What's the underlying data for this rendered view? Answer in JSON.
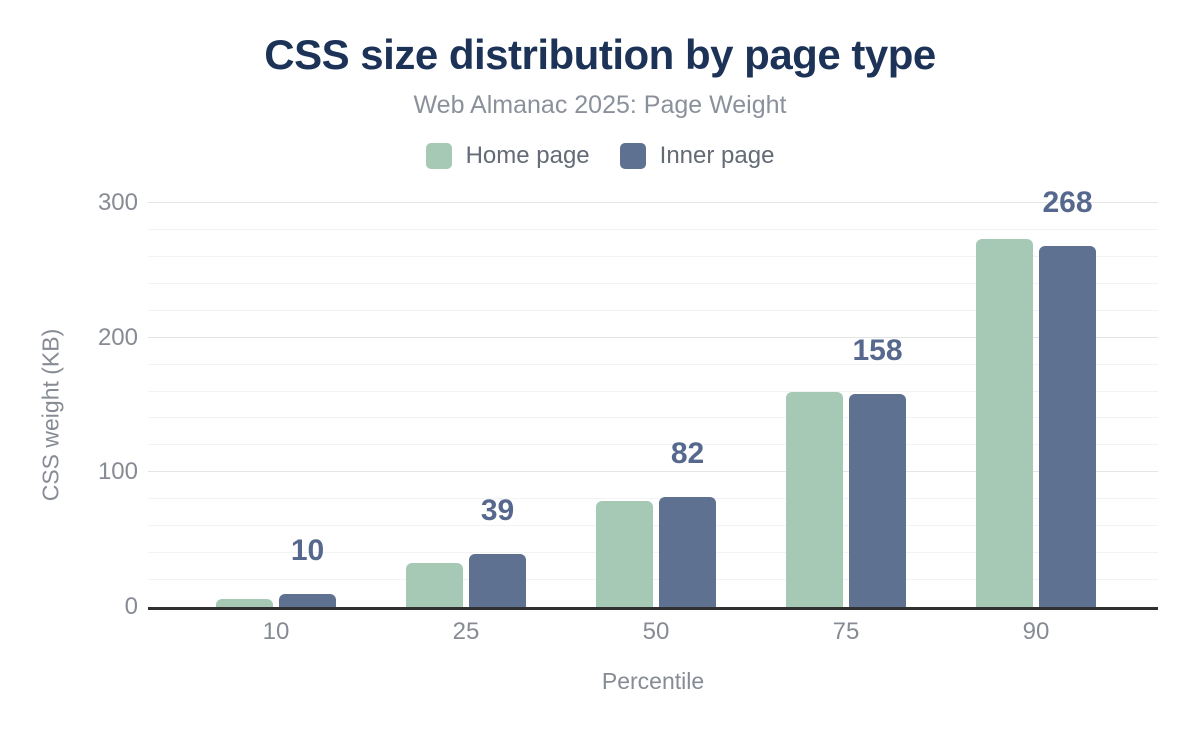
{
  "chart_data": {
    "type": "bar",
    "title": "CSS size distribution by page type",
    "subtitle": "Web Almanac 2025: Page Weight",
    "xlabel": "Percentile",
    "ylabel": "CSS weight (KB)",
    "categories": [
      "10",
      "25",
      "50",
      "75",
      "90"
    ],
    "series": [
      {
        "name": "Home page",
        "color": "#a6c9b6",
        "values": [
          6,
          33,
          79,
          160,
          273
        ]
      },
      {
        "name": "Inner page",
        "color": "#5f7190",
        "values": [
          10,
          39,
          82,
          158,
          268
        ]
      }
    ],
    "data_labels": {
      "shown_for_series": "Inner page",
      "values": [
        10,
        39,
        82,
        158,
        268
      ]
    },
    "ylim": [
      0,
      300
    ],
    "yticks": [
      0,
      100,
      200,
      300
    ],
    "minor_grid_step": 20,
    "grid": "on",
    "legend_position": "top",
    "colors": {
      "title": "#1c3257",
      "subtitle": "#8b919b",
      "legend_text": "#646b76",
      "value_label": "#56688d",
      "axis_text": "#868b94",
      "axis_line": "#303030",
      "major_grid": "#e4e5e7",
      "minor_grid": "#f2f3f4",
      "background": "#ffffff"
    }
  }
}
